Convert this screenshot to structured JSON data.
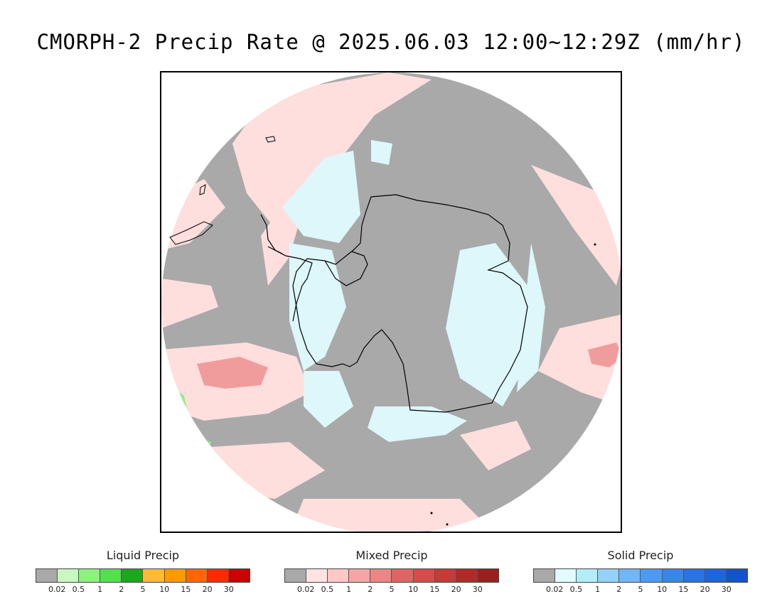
{
  "title": "CMORPH-2 Precip Rate @ 2025.06.03 12:00~12:29Z (mm/hr)",
  "colors": {
    "background_gray": "#a9a9a9",
    "frame": "#000000",
    "coastline": "#000000"
  },
  "legends": [
    {
      "name": "liquid",
      "title": "Liquid Precip",
      "colors": [
        "#a9a9a9",
        "#c9f7c0",
        "#8df07f",
        "#52e04f",
        "#1ea61e",
        "#ffbb33",
        "#ff9900",
        "#ff6600",
        "#ff2a00",
        "#cc0000"
      ],
      "ticks": [
        "0.02",
        "0.5",
        "1",
        "2",
        "5",
        "10",
        "15",
        "20",
        "30"
      ]
    },
    {
      "name": "mixed",
      "title": "Mixed Precip",
      "colors": [
        "#a9a9a9",
        "#ffe3e3",
        "#ffc8c8",
        "#f4a6a6",
        "#ec8585",
        "#e06464",
        "#d84b4b",
        "#c93939",
        "#b32929",
        "#9c1f1f"
      ],
      "ticks": [
        "0.02",
        "0.5",
        "1",
        "2",
        "5",
        "10",
        "15",
        "20",
        "30"
      ]
    },
    {
      "name": "solid",
      "title": "Solid Precip",
      "colors": [
        "#a9a9a9",
        "#e2fbff",
        "#b2eefa",
        "#94d0f8",
        "#74b6f5",
        "#4d9af0",
        "#3a85ea",
        "#2a72e6",
        "#2063e0",
        "#1553cc"
      ],
      "ticks": [
        "0.02",
        "0.5",
        "1",
        "2",
        "5",
        "10",
        "15",
        "20",
        "30"
      ]
    }
  ]
}
